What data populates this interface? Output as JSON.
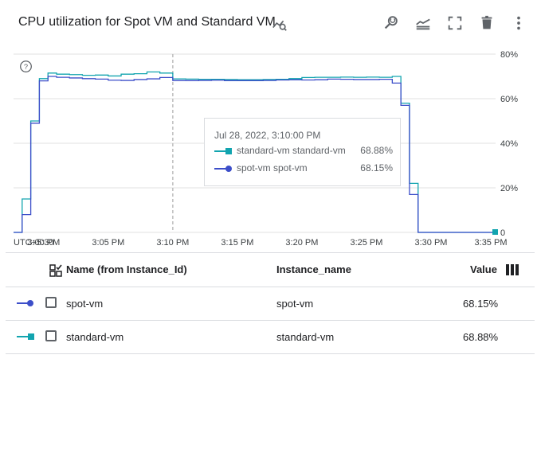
{
  "header": {
    "title": "CPU utilization for Spot VM and Standard VM",
    "toolbar": [
      "zoom-reset-icon",
      "legend-toggle-icon",
      "fullscreen-icon",
      "delete-icon",
      "more-vert-icon"
    ]
  },
  "colors": {
    "standard": "#12a4af",
    "spot": "#3c4ec9",
    "grid": "#e0e0e0",
    "cursor": "#bdbdbd"
  },
  "tooltip": {
    "time": "Jul 28, 2022, 3:10:00 PM",
    "rows": [
      {
        "name": "standard-vm standard-vm",
        "value": "68.88%"
      },
      {
        "name": "spot-vm spot-vm",
        "value": "68.15%"
      }
    ]
  },
  "table": {
    "headers": {
      "name": "Name (from Instance_Id)",
      "instance": "Instance_name",
      "value": "Value"
    },
    "rows": [
      {
        "name": "spot-vm",
        "instance": "spot-vm",
        "value": "68.15%"
      },
      {
        "name": "standard-vm",
        "instance": "standard-vm",
        "value": "68.88%"
      }
    ]
  },
  "chart_data": {
    "type": "line",
    "x_unit": "time",
    "x_tick_labels": [
      "UTC+5:30",
      "3:00 PM",
      "3:05 PM",
      "3:10 PM",
      "3:15 PM",
      "3:20 PM",
      "3:25 PM",
      "3:30 PM",
      "3:35 PM"
    ],
    "y_tick_labels": [
      "80%",
      "60%",
      "40%",
      "20%",
      "0"
    ],
    "ylim": [
      0,
      80
    ],
    "grid": true,
    "cursor_time": "3:10 PM",
    "series": [
      {
        "name": "standard-vm standard-vm",
        "color": "#12a4af",
        "marker": "square",
        "x": [
          "2:57:40",
          "2:58:20",
          "2:59:00",
          "2:59:40",
          "3:00:20",
          "3:01:00",
          "3:02:00",
          "3:03:00",
          "3:04:00",
          "3:05:00",
          "3:06:00",
          "3:07:00",
          "3:08:00",
          "3:09:00",
          "3:10:00",
          "3:11:00",
          "3:12:00",
          "3:13:00",
          "3:14:00",
          "3:15:00",
          "3:16:00",
          "3:17:00",
          "3:18:00",
          "3:19:00",
          "3:20:00",
          "3:21:00",
          "3:22:00",
          "3:23:00",
          "3:24:00",
          "3:25:00",
          "3:26:00",
          "3:27:00",
          "3:27:40",
          "3:28:20",
          "3:29:00",
          "3:30:00",
          "3:31:00",
          "3:32:00",
          "3:33:00",
          "3:34:00",
          "3:35:00"
        ],
        "y": [
          0,
          15,
          50,
          69,
          71.5,
          71,
          70.8,
          70.5,
          70.6,
          70.2,
          71,
          71.2,
          72,
          71.5,
          68.88,
          68.8,
          68.7,
          68.7,
          68.6,
          68.5,
          68.5,
          68.6,
          68.7,
          69,
          69.5,
          69.6,
          69.6,
          69.7,
          69.6,
          69.7,
          69.6,
          70,
          58,
          22,
          0,
          0,
          0,
          0,
          0,
          0,
          0
        ]
      },
      {
        "name": "spot-vm spot-vm",
        "color": "#3c4ec9",
        "marker": "circle",
        "x": [
          "2:57:40",
          "2:58:20",
          "2:59:00",
          "2:59:40",
          "3:00:20",
          "3:01:00",
          "3:02:00",
          "3:03:00",
          "3:04:00",
          "3:05:00",
          "3:06:00",
          "3:07:00",
          "3:08:00",
          "3:09:00",
          "3:10:00",
          "3:11:00",
          "3:12:00",
          "3:13:00",
          "3:14:00",
          "3:15:00",
          "3:16:00",
          "3:17:00",
          "3:18:00",
          "3:19:00",
          "3:20:00",
          "3:21:00",
          "3:22:00",
          "3:23:00",
          "3:24:00",
          "3:25:00",
          "3:26:00",
          "3:27:00",
          "3:27:40",
          "3:28:20",
          "3:29:00",
          "3:30:00",
          "3:31:00",
          "3:32:00",
          "3:33:00",
          "3:34:00",
          "3:35:00"
        ],
        "y": [
          0,
          8,
          49,
          68,
          70,
          69.6,
          69.3,
          69,
          68.8,
          68.3,
          68.2,
          68.6,
          68.9,
          69.5,
          68.15,
          68.1,
          68.2,
          68.3,
          68.1,
          68.1,
          68.1,
          68.2,
          68.4,
          68.5,
          68.4,
          68.5,
          68.8,
          68.7,
          68.6,
          68.6,
          68.7,
          67,
          57,
          17,
          0,
          0,
          0,
          0,
          0,
          0,
          0
        ]
      }
    ]
  }
}
